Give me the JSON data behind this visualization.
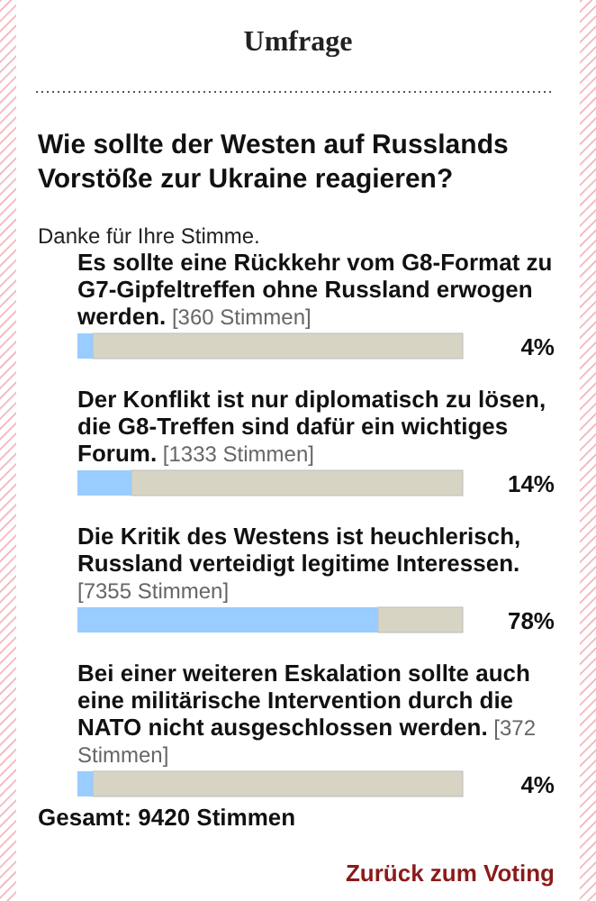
{
  "chart_data": {
    "type": "bar",
    "orientation": "horizontal",
    "title": "Wie sollte der Westen auf Russlands Vorstöße zur Ukraine reagieren?",
    "subtitle": "Danke für Ihre Stimme.",
    "categories": [
      "Es sollte eine Rückkehr vom G8-Format zu G7-Gipfeltreffen ohne Russland erwogen werden. [360 Stimmen]",
      "Der Konflikt ist nur diplomatisch zu lösen, die G8-Treffen sind dafür ein wichtiges Forum. [1333 Stimmen]",
      "Die Kritik des Westens ist heuchlerisch, Russland verteidigt legitime Interessen. [7355 Stimmen]",
      "Bei einer weiteren Eskalation sollte auch eine militärische Intervention durch die NATO nicht ausgeschlossen werden. [372 Stimmen]"
    ],
    "values": [
      4,
      14,
      78,
      4
    ],
    "value_labels": [
      "4%",
      "14%",
      "78%",
      "4%"
    ],
    "color": "#99ccff",
    "xlim": [
      0,
      100
    ],
    "tick_labels": false,
    "annotations": [
      "Umfrage",
      "Gesamt: 9420 Stimmen",
      "Zurück zum Voting"
    ]
  }
}
